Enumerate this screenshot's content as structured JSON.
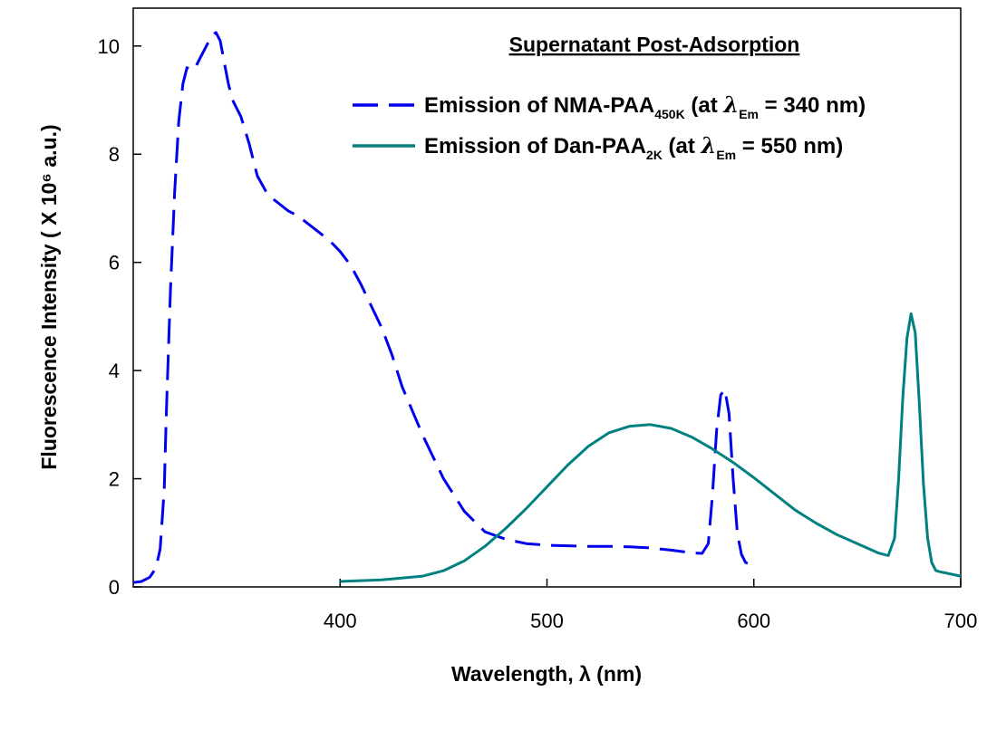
{
  "chart_data": {
    "type": "line",
    "title": "Supernatant Post-Adsorption",
    "xlabel": "Wavelength, λ (nm)",
    "ylabel": "Fluorescence Intensity ( X 10⁶ a.u.)",
    "xlim": [
      300,
      700
    ],
    "ylim": [
      0,
      10.7
    ],
    "x_ticks": [
      400,
      500,
      600,
      700
    ],
    "y_ticks": [
      0,
      2,
      4,
      6,
      8,
      10
    ],
    "grid": false,
    "legend_position": "top-right",
    "legend": {
      "nma": {
        "prefix": "Emission of NMA-PAA",
        "sub": "450K",
        "mid": " (at ",
        "lambda": "λ",
        "lambda_sub": "Em",
        "suffix": " = 340 nm)"
      },
      "dan": {
        "prefix": "Emission of Dan-PAA",
        "sub": "2K",
        "mid": " (at ",
        "lambda": "λ",
        "lambda_sub": "Em",
        "suffix": " = 550 nm)"
      }
    },
    "series": [
      {
        "key": "nma",
        "color": "#0000ee",
        "dash": "28,12",
        "x": [
          300,
          304,
          308,
          311,
          313,
          315,
          316,
          318,
          320,
          322,
          324,
          326,
          328,
          330,
          332,
          334,
          336,
          338,
          340,
          342,
          344,
          346,
          348,
          350,
          352,
          356,
          360,
          365,
          370,
          375,
          380,
          385,
          390,
          395,
          400,
          405,
          410,
          415,
          420,
          425,
          430,
          440,
          450,
          460,
          470,
          480,
          490,
          500,
          510,
          520,
          530,
          540,
          550,
          560,
          570,
          575,
          578,
          580,
          582,
          584,
          586,
          588,
          590,
          592,
          594,
          596,
          598,
          600,
          602
        ],
        "y": [
          0.08,
          0.1,
          0.18,
          0.35,
          0.7,
          1.8,
          3.2,
          5.5,
          7.3,
          8.6,
          9.3,
          9.6,
          9.55,
          9.6,
          9.75,
          9.9,
          10.05,
          10.2,
          10.25,
          10.1,
          9.7,
          9.3,
          9.0,
          8.85,
          8.7,
          8.2,
          7.6,
          7.25,
          7.1,
          6.95,
          6.85,
          6.7,
          6.55,
          6.4,
          6.2,
          5.95,
          5.6,
          5.2,
          4.8,
          4.3,
          3.7,
          2.8,
          2.0,
          1.4,
          1.02,
          0.88,
          0.8,
          0.77,
          0.76,
          0.75,
          0.75,
          0.74,
          0.72,
          0.68,
          0.63,
          0.62,
          0.8,
          1.7,
          2.9,
          3.55,
          3.65,
          3.2,
          2.0,
          1.0,
          0.6,
          0.45,
          0.42,
          0.42,
          0.42
        ]
      },
      {
        "key": "dan",
        "color": "#008080",
        "dash": "",
        "x": [
          400,
          420,
          440,
          450,
          460,
          470,
          480,
          490,
          500,
          510,
          520,
          530,
          540,
          550,
          560,
          570,
          580,
          590,
          600,
          610,
          620,
          630,
          640,
          650,
          660,
          665,
          668,
          670,
          672,
          674,
          676,
          678,
          680,
          682,
          684,
          686,
          688,
          690,
          700
        ],
        "y": [
          0.1,
          0.13,
          0.2,
          0.3,
          0.48,
          0.75,
          1.08,
          1.45,
          1.85,
          2.25,
          2.6,
          2.85,
          2.97,
          3.0,
          2.93,
          2.77,
          2.55,
          2.3,
          2.02,
          1.72,
          1.42,
          1.18,
          0.97,
          0.8,
          0.63,
          0.58,
          0.9,
          2.0,
          3.5,
          4.6,
          5.05,
          4.7,
          3.4,
          1.9,
          0.9,
          0.45,
          0.3,
          0.28,
          0.2
        ]
      }
    ]
  }
}
